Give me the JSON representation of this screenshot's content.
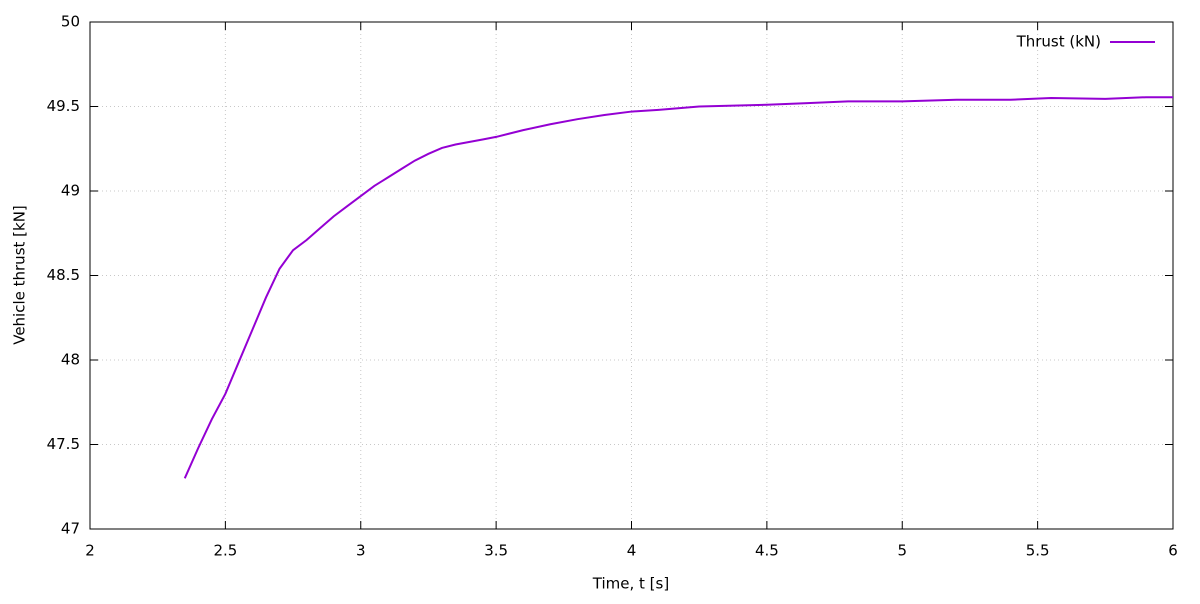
{
  "chart_data": {
    "type": "line",
    "xlabel": "Time, t [s]",
    "ylabel": "Vehicle thrust [kN]",
    "x": [
      2.35,
      2.4,
      2.45,
      2.5,
      2.55,
      2.6,
      2.65,
      2.7,
      2.75,
      2.8,
      2.85,
      2.9,
      2.95,
      3.0,
      3.05,
      3.1,
      3.15,
      3.2,
      3.25,
      3.3,
      3.35,
      3.4,
      3.45,
      3.5,
      3.6,
      3.7,
      3.8,
      3.9,
      4.0,
      4.1,
      4.25,
      4.5,
      4.65,
      4.8,
      5.0,
      5.2,
      5.4,
      5.55,
      5.75,
      5.9,
      6.0
    ],
    "series": [
      {
        "name": "Thrust (kN)",
        "color": "#9400d3",
        "values": [
          47.3,
          47.48,
          47.65,
          47.8,
          47.99,
          48.18,
          48.37,
          48.54,
          48.65,
          48.71,
          48.78,
          48.85,
          48.91,
          48.97,
          49.03,
          49.08,
          49.13,
          49.18,
          49.22,
          49.255,
          49.275,
          49.29,
          49.305,
          49.32,
          49.36,
          49.395,
          49.425,
          49.45,
          49.47,
          49.48,
          49.5,
          49.51,
          49.52,
          49.53,
          49.53,
          49.54,
          49.54,
          49.55,
          49.545,
          49.555,
          49.555
        ]
      }
    ],
    "xlim": [
      2,
      6
    ],
    "xticks": [
      2,
      2.5,
      3,
      3.5,
      4,
      4.5,
      5,
      5.5,
      6
    ],
    "ylim": [
      47,
      50
    ],
    "yticks": [
      47,
      47.5,
      48,
      48.5,
      49,
      49.5,
      50
    ],
    "grid": true,
    "legend": "top-right"
  }
}
